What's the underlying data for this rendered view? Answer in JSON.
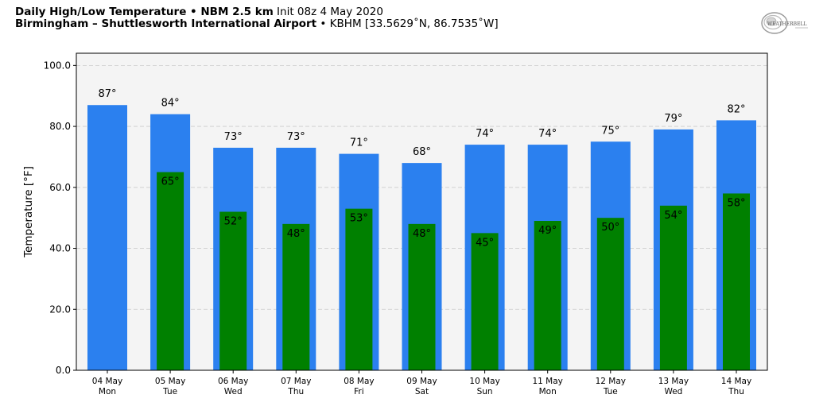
{
  "header": {
    "line1_bold": "Daily High/Low Temperature • NBM 2.5 km",
    "line1_normal": " Init 08z 4 May 2020",
    "line2_bold": "Birmingham – Shuttlesworth International Airport",
    "line2_normal": " • KBHM [33.5629˚N, 86.7535˚W]"
  },
  "logo": {
    "text": "WEATHERBELL",
    "icon": "weatherbell-logo"
  },
  "colors": {
    "high": "#2b80ef",
    "low": "#008000",
    "plot_bg": "#f4f4f4",
    "grid": "#cccccc"
  },
  "chart_data": {
    "type": "bar",
    "title": "Daily High/Low Temperature • NBM 2.5 km",
    "ylabel": "Temperature [°F]",
    "ylim": [
      0,
      104
    ],
    "yticks": [
      "0.0",
      "20.0",
      "40.0",
      "60.0",
      "80.0",
      "100.0"
    ],
    "grid": true,
    "categories": [
      {
        "date": "04 May",
        "day": "Mon"
      },
      {
        "date": "05 May",
        "day": "Tue"
      },
      {
        "date": "06 May",
        "day": "Wed"
      },
      {
        "date": "07 May",
        "day": "Thu"
      },
      {
        "date": "08 May",
        "day": "Fri"
      },
      {
        "date": "09 May",
        "day": "Sat"
      },
      {
        "date": "10 May",
        "day": "Sun"
      },
      {
        "date": "11 May",
        "day": "Mon"
      },
      {
        "date": "12 May",
        "day": "Tue"
      },
      {
        "date": "13 May",
        "day": "Wed"
      },
      {
        "date": "14 May",
        "day": "Thu"
      }
    ],
    "series": [
      {
        "values": [
          87,
          84,
          73,
          73,
          71,
          68,
          74,
          74,
          75,
          79,
          82
        ],
        "labels": [
          "87°",
          "84°",
          "73°",
          "73°",
          "71°",
          "68°",
          "74°",
          "74°",
          "75°",
          "79°",
          "82°"
        ]
      },
      {
        "values": [
          null,
          65,
          52,
          48,
          53,
          48,
          45,
          49,
          50,
          54,
          58
        ],
        "labels": [
          "",
          "65°",
          "52°",
          "48°",
          "53°",
          "48°",
          "45°",
          "49°",
          "50°",
          "54°",
          "58°"
        ]
      }
    ]
  }
}
